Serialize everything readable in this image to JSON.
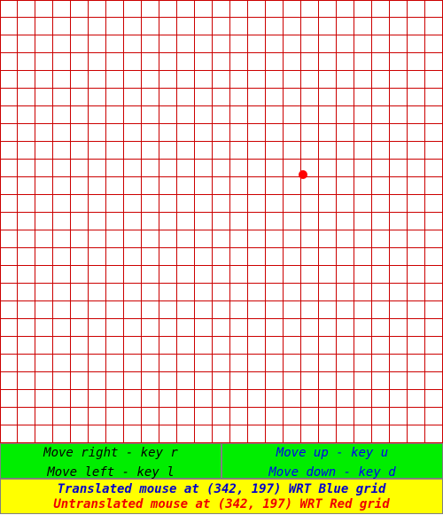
{
  "colors": {
    "grid_line": "#cc0000",
    "background": "#ffffff",
    "marker": "#ff0000",
    "key_panel_bg": "#00ee00",
    "left_text": "#000000",
    "right_text": "#0000ee",
    "status_bg": "#ffff00",
    "translated_text": "#0000cc",
    "untranslated_text": "#ee0000"
  },
  "grid": {
    "cell_size": 20,
    "marker": {
      "x": 342,
      "y": 197
    }
  },
  "controls": {
    "left_panel": {
      "line1": "Move right - key r",
      "line2": "Move left - key l"
    },
    "right_panel": {
      "line1": "Move up - key u",
      "line2": "Move down - key d"
    }
  },
  "status": {
    "translated": "Translated mouse at (342, 197) WRT Blue grid",
    "untranslated": "Untranslated mouse at (342, 197) WRT Red grid"
  }
}
